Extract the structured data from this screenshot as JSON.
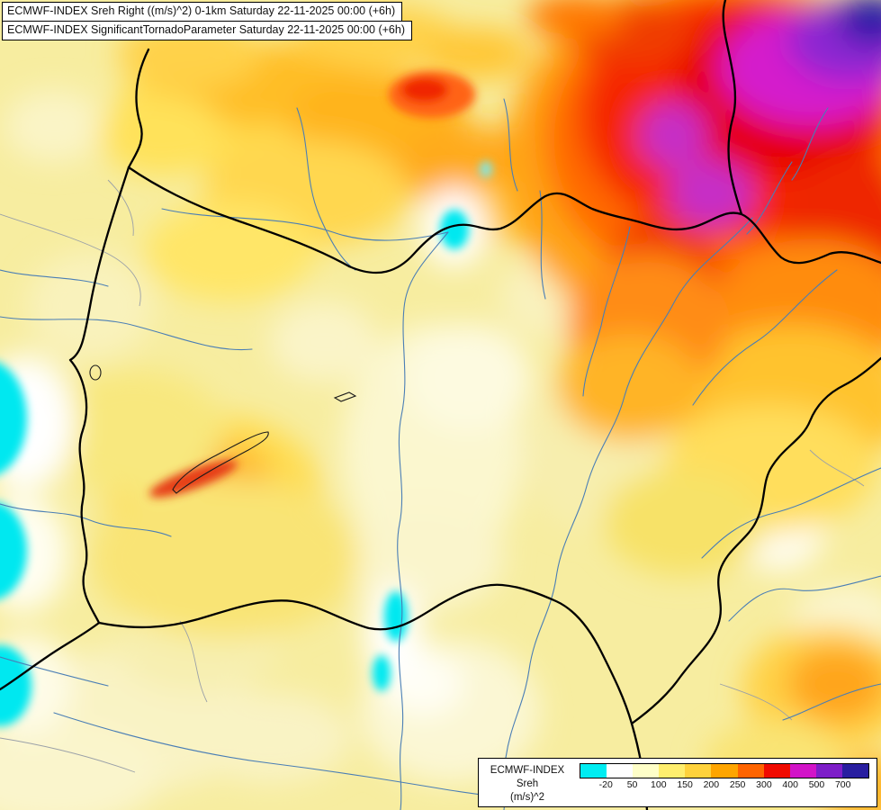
{
  "titles": {
    "line1": "ECMWF-INDEX Sreh Right ((m/s)^2) 0-1km Saturday 22-11-2025 00:00 (+6h)",
    "line2": "ECMWF-INDEX SignificantTornadoParameter Saturday 22-11-2025 00:00 (+6h)"
  },
  "legend": {
    "title": "ECMWF-INDEX",
    "param": "Sreh",
    "units": "(m/s)^2",
    "ticks": [
      "-20",
      "50",
      "100",
      "150",
      "200",
      "250",
      "300",
      "400",
      "500",
      "700"
    ],
    "colors": [
      "#00EDF2",
      "#FFFFFF",
      "#FFFFC8",
      "#FFEE6E",
      "#FFD23C",
      "#FFA500",
      "#FF6400",
      "#F00A00",
      "#D214C8",
      "#7D1EC8",
      "#281EA0"
    ]
  },
  "map_colors": {
    "base_fill": "#F7EDA0",
    "border": "#000000",
    "river": "#4A7EB5",
    "admin_gray": "#9AA0A8"
  }
}
